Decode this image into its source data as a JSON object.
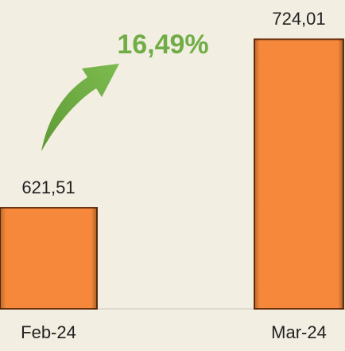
{
  "chart_data": {
    "type": "bar",
    "categories": [
      "Feb-24",
      "Mar-24"
    ],
    "values": [
      621.51,
      724.01
    ],
    "value_labels": [
      "621,51",
      "724,01"
    ],
    "color": "#f5883a",
    "ylim": [
      560,
      730
    ],
    "annotation": "16,49%",
    "annotation_color": "#70ad47"
  }
}
